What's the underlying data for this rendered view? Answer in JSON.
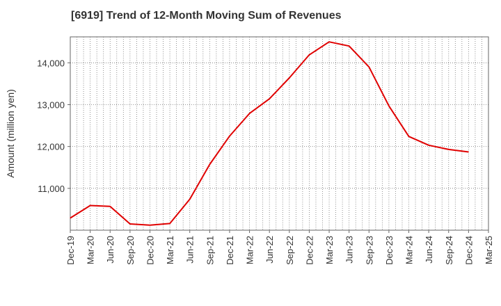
{
  "chart_data": {
    "type": "line",
    "title": "[6919]  Trend of 12-Month Moving Sum of Revenues",
    "xlabel": "",
    "ylabel": "Amount (million yen)",
    "x_ticks": [
      "Dec-19",
      "Mar-20",
      "Jun-20",
      "Sep-20",
      "Dec-20",
      "Mar-21",
      "Jun-21",
      "Sep-21",
      "Dec-21",
      "Mar-22",
      "Jun-22",
      "Sep-22",
      "Dec-22",
      "Mar-23",
      "Jun-23",
      "Sep-23",
      "Dec-23",
      "Mar-24",
      "Jun-24",
      "Sep-24",
      "Dec-24",
      "Mar-25"
    ],
    "y_ticks": [
      11000,
      12000,
      13000,
      14000
    ],
    "y_tick_labels": [
      "11,000",
      "12,000",
      "13,000",
      "14,000"
    ],
    "ylim": [
      10000,
      14620
    ],
    "grid": true,
    "series": [
      {
        "color": "#e00000",
        "x": [
          "Dec-19",
          "Mar-20",
          "Jun-20",
          "Sep-20",
          "Dec-20",
          "Mar-21",
          "Jun-21",
          "Sep-21",
          "Dec-21",
          "Mar-22",
          "Jun-22",
          "Sep-22",
          "Dec-22",
          "Mar-23",
          "Jun-23",
          "Sep-23",
          "Dec-23",
          "Mar-24",
          "Jun-24",
          "Sep-24",
          "Dec-24"
        ],
        "values": [
          10290,
          10590,
          10570,
          10150,
          10120,
          10160,
          10740,
          11570,
          12250,
          12790,
          13140,
          13640,
          14190,
          14500,
          14400,
          13900,
          12970,
          12240,
          12030,
          11930,
          11870
        ]
      }
    ]
  }
}
